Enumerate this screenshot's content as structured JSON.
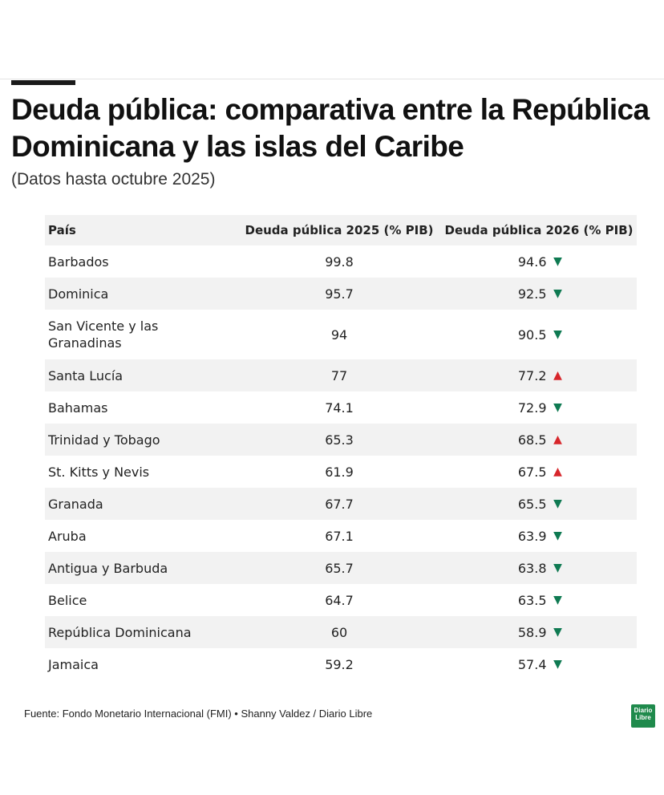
{
  "title": "Deuda pública: comparativa entre la República Dominicana y las islas del Caribe",
  "subtitle": "(Datos hasta octubre 2025)",
  "source": "Fuente: Fondo Monetario Internacional (FMI) • Shanny Valdez / Diario Libre",
  "logo": {
    "line1": "Diario",
    "line2": "Libre"
  },
  "colors": {
    "down": "#0f7a52",
    "up": "#d7262b",
    "stripe": "#f2f2f2",
    "logo": "#1f8a4c"
  },
  "arrow_symbols": {
    "down": "▼",
    "up": "▲"
  },
  "chart_data": {
    "type": "table",
    "title": "Deuda pública: comparativa entre la República Dominicana y las islas del Caribe",
    "subtitle": "(Datos hasta octubre 2025)",
    "columns": [
      "País",
      "Deuda pública 2025 (% PIB)",
      "Deuda pública 2026 (% PIB)"
    ],
    "rows": [
      {
        "country": "Barbados",
        "debt2025": "99.8",
        "debt2026": "94.6",
        "trend": "down"
      },
      {
        "country": "Dominica",
        "debt2025": "95.7",
        "debt2026": "92.5",
        "trend": "down"
      },
      {
        "country": "San Vicente y las Granadinas",
        "debt2025": "94",
        "debt2026": "90.5",
        "trend": "down"
      },
      {
        "country": "Santa Lucía",
        "debt2025": "77",
        "debt2026": "77.2",
        "trend": "up"
      },
      {
        "country": "Bahamas",
        "debt2025": "74.1",
        "debt2026": "72.9",
        "trend": "down"
      },
      {
        "country": "Trinidad y Tobago",
        "debt2025": "65.3",
        "debt2026": "68.5",
        "trend": "up"
      },
      {
        "country": "St. Kitts y Nevis",
        "debt2025": "61.9",
        "debt2026": "67.5",
        "trend": "up"
      },
      {
        "country": "Granada",
        "debt2025": "67.7",
        "debt2026": "65.5",
        "trend": "down"
      },
      {
        "country": "Aruba",
        "debt2025": "67.1",
        "debt2026": "63.9",
        "trend": "down"
      },
      {
        "country": "Antigua y Barbuda",
        "debt2025": "65.7",
        "debt2026": "63.8",
        "trend": "down"
      },
      {
        "country": "Belice",
        "debt2025": "64.7",
        "debt2026": "63.5",
        "trend": "down"
      },
      {
        "country": "República Dominicana",
        "debt2025": "60",
        "debt2026": "58.9",
        "trend": "down"
      },
      {
        "country": "Jamaica",
        "debt2025": "59.2",
        "debt2026": "57.4",
        "trend": "down"
      }
    ]
  }
}
